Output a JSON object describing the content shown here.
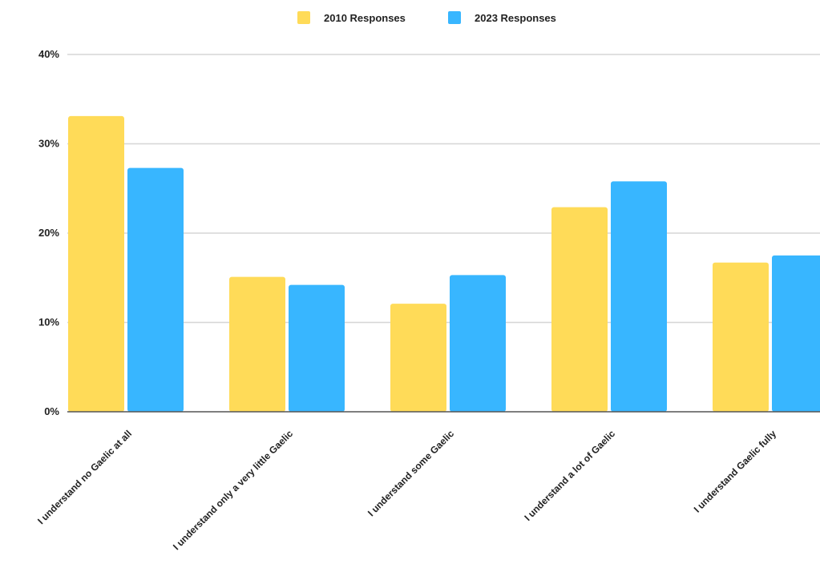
{
  "chart_data": {
    "type": "bar",
    "title": "",
    "xlabel": "",
    "ylabel": "",
    "categories": [
      "I understand no Gaelic at all",
      "I understand only a very little Gaelic",
      "I understand some Gaelic",
      "I understand a lot of Gaelic",
      "I understand Gaelic fully"
    ],
    "series": [
      {
        "name": "2010 Responses",
        "color": "#FFDB58",
        "values": [
          33.1,
          15.1,
          12.1,
          22.9,
          16.7
        ]
      },
      {
        "name": "2023 Responses",
        "color": "#38B6FF",
        "values": [
          27.3,
          14.2,
          15.3,
          25.8,
          17.5
        ]
      }
    ],
    "ylim": [
      0,
      40
    ],
    "yticks": [
      0,
      10,
      20,
      30,
      40
    ],
    "ytick_labels": [
      "0%",
      "10%",
      "20%",
      "30%",
      "40%"
    ],
    "grid": true,
    "legend": "top-center"
  }
}
